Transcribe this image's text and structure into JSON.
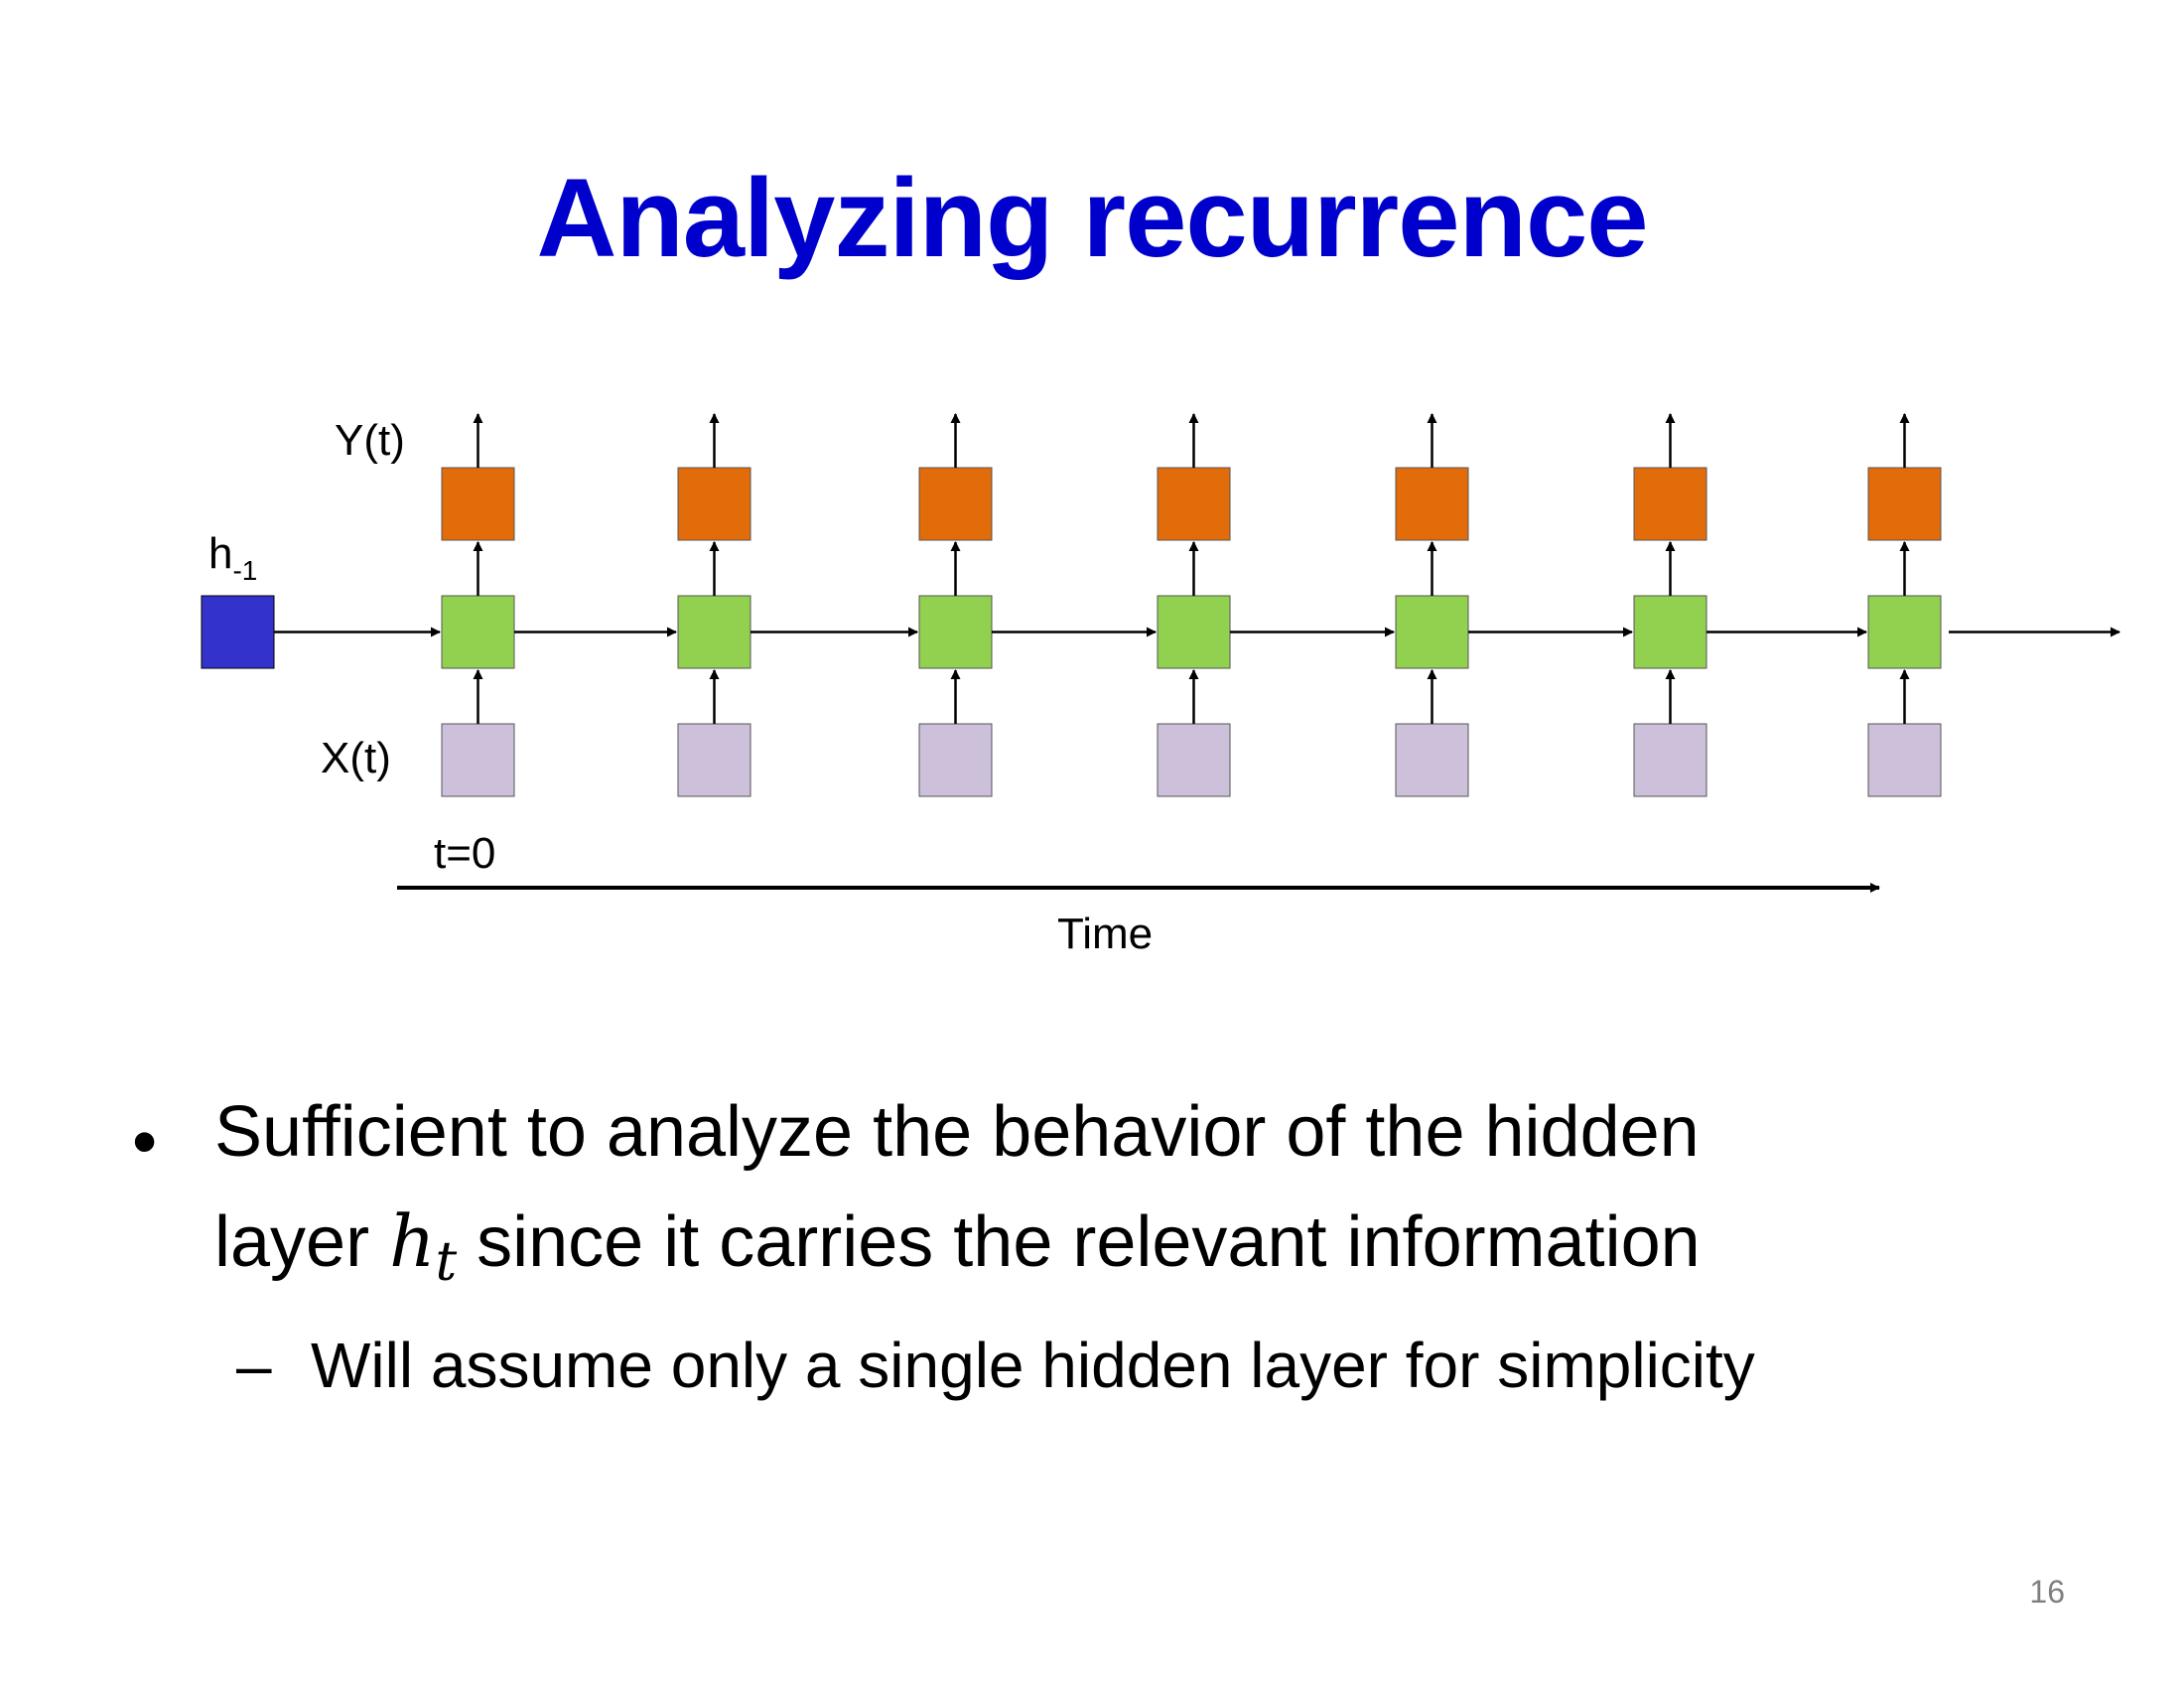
{
  "slide": {
    "title": "Analyzing recurrence",
    "page_number": "16"
  },
  "diagram": {
    "labels": {
      "y": "Y(t)",
      "x": "X(t)",
      "h_initial": "h",
      "h_initial_sub": "-1",
      "t0": "t=0",
      "time": "Time"
    },
    "timesteps": 7,
    "colors": {
      "initial_state": "#3333CC",
      "hidden": "#92D050",
      "output": "#E36C0A",
      "input": "#CCC0DA",
      "title": "#0000CC"
    }
  },
  "bullets": {
    "main": {
      "marker": "•",
      "line1": "Sufficient to analyze the behavior of the hidden",
      "line2_pre": "layer ",
      "math_var": "h",
      "math_sub": "t",
      "line2_post": " since it carries the relevant information"
    },
    "sub": {
      "marker": "–",
      "text": "Will assume only a single hidden layer for simplicity"
    }
  }
}
